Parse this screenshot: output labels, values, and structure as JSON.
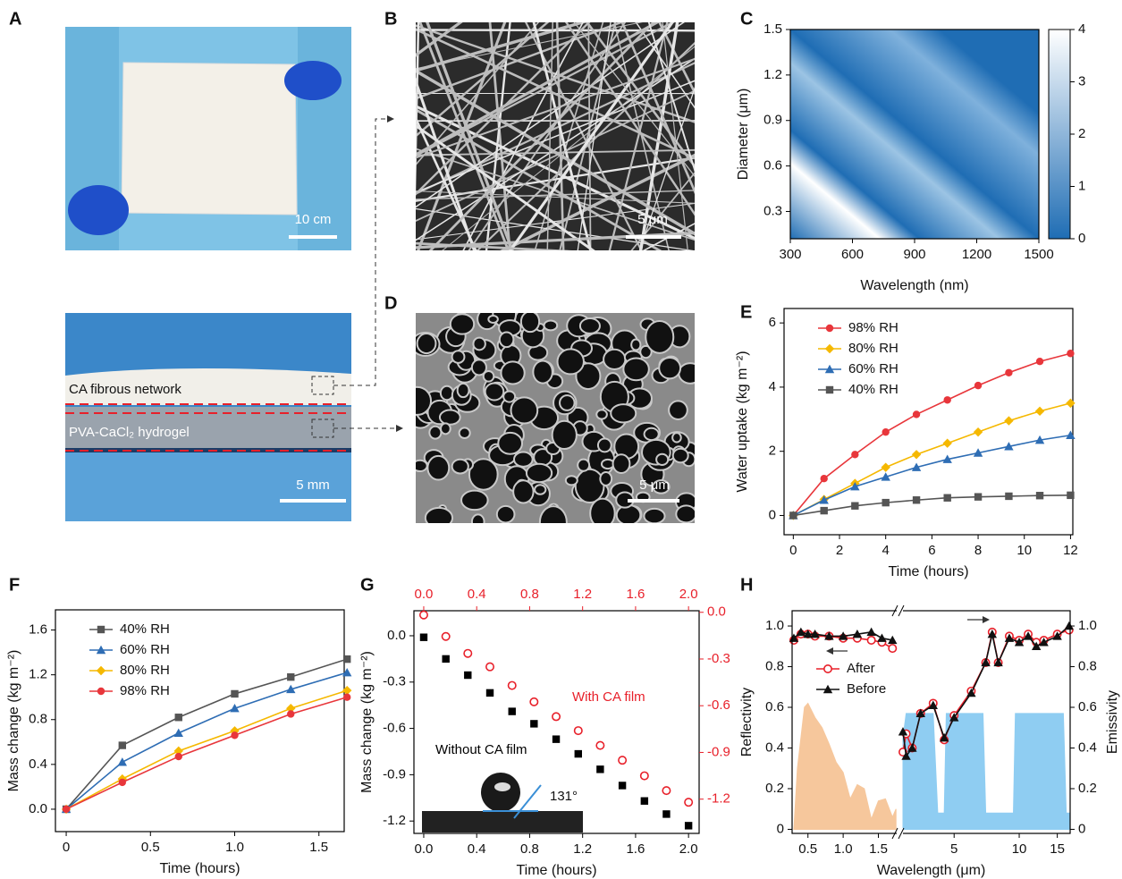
{
  "panel_labels": [
    "A",
    "B",
    "C",
    "D",
    "E",
    "F",
    "G",
    "H"
  ],
  "photos": {
    "a_top": {
      "scale_bar": "10 cm"
    },
    "a_bottom": {
      "layers": [
        "CA fibrous network",
        "PVA-CaCl₂ hydrogel"
      ],
      "scale_bar": "5 mm"
    },
    "b": {
      "scale_bar": "5 μm"
    },
    "d": {
      "scale_bar": "5 μm"
    }
  },
  "chart_data": [
    {
      "type": "heatmap",
      "x_label": "Wavelength (nm)",
      "y_label": "Diameter (μm)",
      "xlim": [
        300,
        1500
      ],
      "xticks": [
        300,
        600,
        900,
        1200,
        1500
      ],
      "ylim": [
        0.12,
        1.5
      ],
      "yticks": [
        0.3,
        0.6,
        0.9,
        1.2,
        1.5
      ],
      "zlim": [
        0,
        4
      ],
      "zticks": [
        0,
        1,
        2,
        3,
        4
      ],
      "colors": [
        "#1f6db4",
        "#ffffff"
      ]
    },
    {
      "type": "line",
      "x_label": "Time (hours)",
      "y_label": "Water uptake (kg m⁻²)",
      "legend": "upper left",
      "x": [
        0,
        1.33,
        2.67,
        4,
        5.33,
        6.67,
        8,
        9.33,
        10.67,
        12
      ],
      "xlim": [
        -0.4,
        12.1
      ],
      "xticks": [
        0,
        2,
        4,
        6,
        8,
        10,
        12
      ],
      "ylim": [
        -0.6,
        6.45
      ],
      "yticks": [
        0,
        2,
        4,
        6
      ],
      "series": [
        {
          "name": "98% RH",
          "color": "#e8363b",
          "marker": "circle",
          "values": [
            0,
            1.15,
            1.9,
            2.6,
            3.15,
            3.6,
            4.05,
            4.45,
            4.8,
            5.05
          ]
        },
        {
          "name": "80% RH",
          "color": "#f5b800",
          "marker": "diamond",
          "values": [
            0,
            0.5,
            1.0,
            1.5,
            1.9,
            2.25,
            2.6,
            2.95,
            3.25,
            3.5
          ]
        },
        {
          "name": "60% RH",
          "color": "#2e6db4",
          "marker": "triangle",
          "values": [
            0,
            0.48,
            0.9,
            1.2,
            1.5,
            1.75,
            1.95,
            2.15,
            2.35,
            2.5
          ]
        },
        {
          "name": "40% RH",
          "color": "#555555",
          "marker": "square",
          "values": [
            0,
            0.15,
            0.3,
            0.4,
            0.48,
            0.55,
            0.58,
            0.6,
            0.62,
            0.63
          ]
        }
      ]
    },
    {
      "type": "line",
      "x_label": "Time (hours)",
      "y_label": "Mass change (kg m⁻²)",
      "legend": "upper left",
      "x": [
        0,
        0.333,
        0.667,
        1.0,
        1.333,
        1.667
      ],
      "xlim": [
        -0.064,
        1.65
      ],
      "xticks": [
        0,
        0.5,
        {
          "value": 1,
          "label": "1.0"
        },
        1.5
      ],
      "ylim": [
        -0.2,
        1.78
      ],
      "yticks": [
        {
          "value": 0,
          "label": "0.0"
        },
        0.4,
        0.8,
        1.2,
        1.6
      ],
      "series": [
        {
          "name": "40% RH",
          "color": "#555555",
          "marker": "square",
          "values": [
            0,
            0.57,
            0.82,
            1.03,
            1.18,
            1.34
          ]
        },
        {
          "name": "60% RH",
          "color": "#2e6db4",
          "marker": "triangle",
          "values": [
            0,
            0.42,
            0.68,
            0.9,
            1.07,
            1.22
          ]
        },
        {
          "name": "80% RH",
          "color": "#f5b800",
          "marker": "diamond",
          "values": [
            0,
            0.27,
            0.52,
            0.7,
            0.9,
            1.06
          ]
        },
        {
          "name": "98% RH",
          "color": "#e8363b",
          "marker": "circle",
          "values": [
            0,
            0.24,
            0.47,
            0.66,
            0.85,
            1.0
          ]
        }
      ]
    },
    {
      "type": "scatter",
      "x_label": "Time (hours)",
      "y_label": "Mass change (kg m⁻²)",
      "annotation": "131°",
      "xlim": [
        -0.074,
        2.08
      ],
      "xticks": [
        {
          "value": 0,
          "label": "0.0"
        },
        0.4,
        0.8,
        1.2,
        1.6,
        {
          "value": 2,
          "label": "2.0"
        }
      ],
      "x2lim": [
        -0.074,
        2.08
      ],
      "x2ticks": [
        {
          "value": 0,
          "label": "0.0"
        },
        0.4,
        0.8,
        1.2,
        1.6,
        {
          "value": 2,
          "label": "2.0"
        }
      ],
      "ylim": [
        -1.28,
        0.162
      ],
      "yticks": [
        {
          "value": 0,
          "label": "0.0"
        },
        -0.3,
        -0.6,
        -0.9,
        -1.2
      ],
      "y2lim": [
        -1.42,
        0.01
      ],
      "y2ticks": [
        {
          "value": 0,
          "label": "0.0"
        },
        -0.3,
        -0.6,
        -0.9,
        -1.2
      ],
      "y2color": "#e8202a",
      "x": [
        0,
        0.167,
        0.333,
        0.5,
        0.667,
        0.833,
        1.0,
        1.167,
        1.333,
        1.5,
        1.667,
        1.833,
        2.0
      ],
      "series": [
        {
          "name": "Without CA film",
          "color": "#000000",
          "marker": "square",
          "axis": "y",
          "values": [
            -0.01,
            -0.15,
            -0.255,
            -0.37,
            -0.49,
            -0.57,
            -0.67,
            -0.765,
            -0.865,
            -0.97,
            -1.07,
            -1.155,
            -1.23
          ]
        },
        {
          "name": "With CA film",
          "color": "#e8202a",
          "marker": "circle-open",
          "axis": "y2",
          "values": [
            -0.017,
            -0.155,
            -0.264,
            -0.35,
            -0.47,
            -0.575,
            -0.67,
            -0.76,
            -0.855,
            -0.95,
            -1.05,
            -1.145,
            -1.22
          ]
        }
      ]
    },
    {
      "type": "spectrum",
      "x_label": "Wavelength (μm)",
      "y_label": "Reflectivity",
      "y2_label": "Emissivity",
      "legend": "center left",
      "x_segments": [
        {
          "xlim": [
            0.275,
            1.76
          ],
          "xticks": [
            0.5,
            {
              "value": 1,
              "label": "1.0"
            },
            1.5
          ],
          "log": false
        },
        {
          "xlim": [
            2.9,
            17.2
          ],
          "xticks": [
            5,
            10,
            15
          ],
          "log": true
        }
      ],
      "ylim": [
        -0.02,
        1.075
      ],
      "yticks": [
        0,
        0.2,
        0.4,
        0.6,
        0.8,
        {
          "value": 1,
          "label": "1.0"
        }
      ],
      "y2lim": [
        -0.02,
        1.075
      ],
      "y2ticks": [
        0,
        0.2,
        0.4,
        0.6,
        0.8,
        {
          "value": 1,
          "label": "1.0"
        }
      ],
      "series": [
        {
          "name": "After",
          "color": "#e8202a",
          "marker": "circle-open",
          "x": [
            0.3,
            0.4,
            0.5,
            0.6,
            0.8,
            1.0,
            1.2,
            1.4,
            1.55,
            1.7,
            null,
            2.9,
            3.0,
            3.2,
            3.5,
            4.0,
            4.5,
            5.0,
            6.0,
            7.0,
            7.5,
            8.0,
            9.0,
            10.0,
            11.0,
            12.0,
            13.0,
            15.0,
            17.0
          ],
          "values": [
            0.93,
            0.96,
            0.96,
            0.95,
            0.95,
            0.94,
            0.94,
            0.93,
            0.92,
            0.89,
            null,
            0.38,
            0.47,
            0.4,
            0.57,
            0.62,
            0.44,
            0.56,
            0.68,
            0.82,
            0.97,
            0.82,
            0.95,
            0.93,
            0.96,
            0.92,
            0.93,
            0.96,
            0.98
          ]
        },
        {
          "name": "Before",
          "color": "#111111",
          "marker": "triangle",
          "x": [
            0.3,
            0.4,
            0.5,
            0.6,
            0.8,
            1.0,
            1.2,
            1.4,
            1.55,
            1.7,
            null,
            2.9,
            3.0,
            3.2,
            3.5,
            4.0,
            4.5,
            5.0,
            6.0,
            7.0,
            7.5,
            8.0,
            9.0,
            10.0,
            11.0,
            12.0,
            13.0,
            15.0,
            17.0
          ],
          "values": [
            0.94,
            0.97,
            0.96,
            0.96,
            0.95,
            0.95,
            0.96,
            0.97,
            0.94,
            0.93,
            null,
            0.48,
            0.36,
            0.4,
            0.57,
            0.61,
            0.45,
            0.55,
            0.67,
            0.82,
            0.96,
            0.82,
            0.94,
            0.92,
            0.95,
            0.9,
            0.92,
            0.95,
            1.0
          ]
        }
      ],
      "fills": [
        {
          "color": "#f6c79c",
          "x": [
            0.3,
            0.35,
            0.45,
            0.5,
            0.6,
            0.7,
            0.8,
            0.9,
            1.0,
            1.1,
            1.2,
            1.3,
            1.4,
            1.5,
            1.6,
            1.7,
            1.75
          ],
          "values": [
            0,
            0.3,
            0.6,
            0.62,
            0.55,
            0.5,
            0.42,
            0.33,
            0.28,
            0.15,
            0.22,
            0.2,
            0.05,
            0.14,
            0.15,
            0.06,
            0.1
          ]
        },
        {
          "color": "#8fcdf2",
          "x": [
            2.9,
            3.0,
            4.0,
            4.2,
            4.5,
            4.6,
            6.8,
            7.0,
            9.4,
            9.6,
            16.0,
            16.5,
            17.2
          ],
          "values": [
            0.45,
            0.57,
            0.57,
            0.08,
            0.08,
            0.57,
            0.57,
            0.08,
            0.08,
            0.57,
            0.57,
            0.08,
            0.08
          ]
        }
      ]
    }
  ]
}
